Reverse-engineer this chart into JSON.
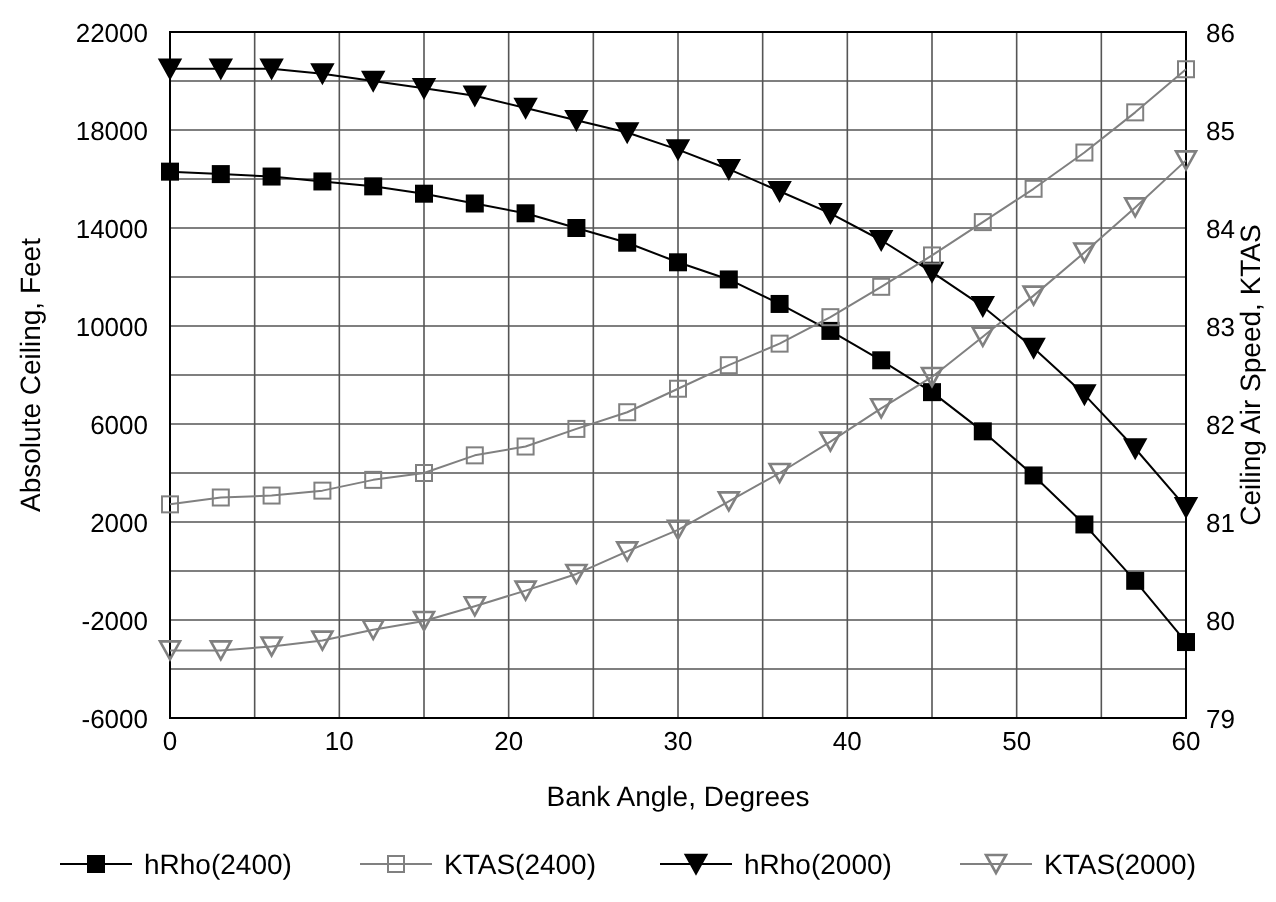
{
  "chart_data": {
    "type": "line",
    "xlabel": "Bank Angle, Degrees",
    "ylabel": "Absolute Ceiling, Feet",
    "y2label": "Ceiling Air Speed, KTAS",
    "x": [
      0,
      3,
      6,
      9,
      12,
      15,
      18,
      21,
      24,
      27,
      30,
      33,
      36,
      39,
      42,
      45,
      48,
      51,
      54,
      57,
      60
    ],
    "xlim": [
      0,
      60
    ],
    "xticks": [
      0,
      {
        "value": 5,
        "label": null
      },
      10,
      {
        "value": 15,
        "label": null
      },
      20,
      {
        "value": 25,
        "label": null
      },
      30,
      {
        "value": 35,
        "label": null
      },
      40,
      {
        "value": 45,
        "label": null
      },
      50,
      {
        "value": 55,
        "label": null
      },
      60
    ],
    "ylim": [
      -6000,
      22000
    ],
    "yticks": [
      -6000,
      {
        "value": -4000,
        "label": null
      },
      -2000,
      {
        "value": 0,
        "label": null
      },
      2000,
      {
        "value": 4000,
        "label": null
      },
      6000,
      {
        "value": 8000,
        "label": null
      },
      10000,
      {
        "value": 12000,
        "label": null
      },
      14000,
      {
        "value": 16000,
        "label": null
      },
      18000,
      {
        "value": 20000,
        "label": null
      },
      22000
    ],
    "y2lim": [
      79,
      86
    ],
    "y2ticks": [
      79,
      80,
      81,
      82,
      83,
      84,
      85,
      86
    ],
    "grid": true,
    "legend": "bottom",
    "series": [
      {
        "name": "hRho(2400)",
        "color": "#000000",
        "marker": "square",
        "values": [
          16300,
          16200,
          16100,
          15900,
          15700,
          15400,
          15000,
          14600,
          14000,
          13400,
          12600,
          11900,
          10900,
          9800,
          8600,
          7300,
          5700,
          3900,
          1900,
          -400,
          -2900
        ]
      },
      {
        "name": "KTAS(2400)",
        "color": "#808080",
        "marker": "square",
        "axis": "y2",
        "values": [
          81.18,
          81.25,
          81.27,
          81.32,
          81.43,
          81.5,
          81.68,
          81.77,
          81.95,
          82.12,
          82.36,
          82.6,
          82.82,
          83.09,
          83.4,
          83.72,
          84.06,
          84.4,
          84.77,
          85.18,
          85.62
        ]
      },
      {
        "name": "hRho(2000)",
        "color": "#000000",
        "marker": "triangle",
        "values": [
          20500,
          20500,
          20500,
          20300,
          20000,
          19700,
          19400,
          18900,
          18400,
          17900,
          17200,
          16400,
          15500,
          14600,
          13500,
          12200,
          10800,
          9100,
          7200,
          5000,
          2600
        ]
      },
      {
        "name": "KTAS(2000)",
        "color": "#808080",
        "marker": "triangle",
        "axis": "y2",
        "values": [
          79.69,
          79.69,
          79.73,
          79.79,
          79.9,
          79.99,
          80.14,
          80.3,
          80.47,
          80.7,
          80.92,
          81.21,
          81.5,
          81.82,
          82.16,
          82.48,
          82.89,
          83.31,
          83.75,
          84.21,
          84.69
        ]
      }
    ]
  }
}
